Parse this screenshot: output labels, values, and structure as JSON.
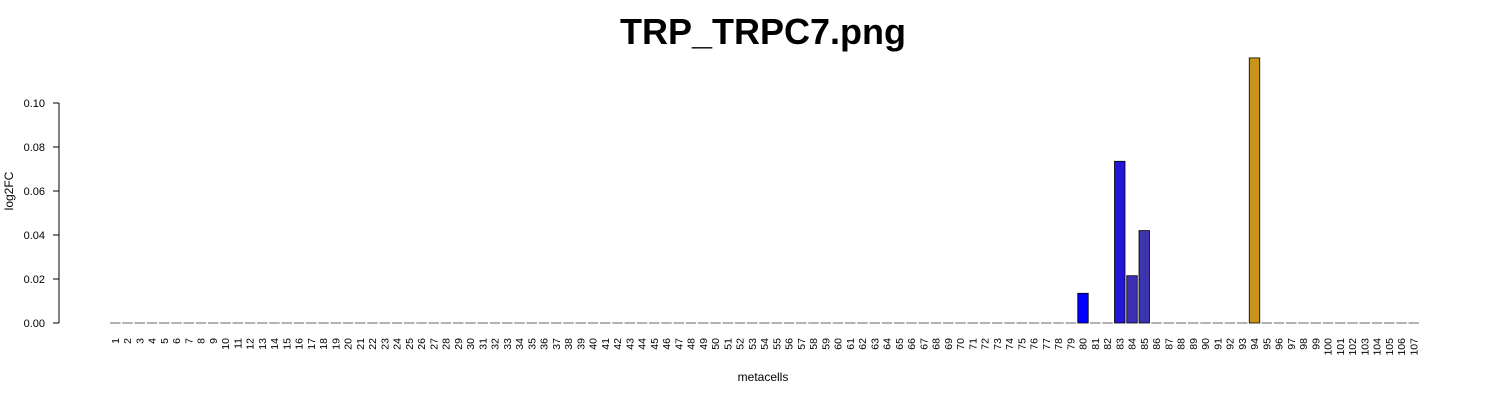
{
  "chart_data": {
    "type": "bar",
    "title": "TRP_TRPC7.png",
    "xlabel": "metacells",
    "ylabel": "log2FC",
    "ylim": [
      0,
      0.12
    ],
    "yticks": [
      "0.00",
      "0.02",
      "0.04",
      "0.06",
      "0.08",
      "0.10"
    ],
    "categories": [
      "1",
      "2",
      "3",
      "4",
      "5",
      "6",
      "7",
      "8",
      "9",
      "10",
      "11",
      "12",
      "13",
      "14",
      "15",
      "16",
      "17",
      "18",
      "19",
      "20",
      "21",
      "22",
      "23",
      "24",
      "25",
      "26",
      "27",
      "28",
      "29",
      "30",
      "31",
      "32",
      "33",
      "34",
      "35",
      "36",
      "37",
      "38",
      "39",
      "40",
      "41",
      "42",
      "43",
      "44",
      "45",
      "46",
      "47",
      "48",
      "49",
      "50",
      "51",
      "52",
      "53",
      "54",
      "55",
      "56",
      "57",
      "58",
      "59",
      "60",
      "61",
      "62",
      "63",
      "64",
      "65",
      "66",
      "67",
      "68",
      "69",
      "70",
      "71",
      "72",
      "73",
      "74",
      "75",
      "76",
      "77",
      "78",
      "79",
      "80",
      "81",
      "82",
      "83",
      "84",
      "85",
      "86",
      "87",
      "88",
      "89",
      "90",
      "91",
      "92",
      "93",
      "94",
      "95",
      "96",
      "97",
      "98",
      "99",
      "100",
      "101",
      "102",
      "103",
      "104",
      "105",
      "106",
      "107"
    ],
    "values": [
      0,
      0,
      0,
      0,
      0,
      0,
      0,
      0,
      0,
      0,
      0,
      0,
      0,
      0,
      0,
      0,
      0,
      0,
      0,
      0,
      0,
      0,
      0,
      0,
      0,
      0,
      0,
      0,
      0,
      0,
      0,
      0,
      0,
      0,
      0,
      0,
      0,
      0,
      0,
      0,
      0,
      0,
      0,
      0,
      0,
      0,
      0,
      0,
      0,
      0,
      0,
      0,
      0,
      0,
      0,
      0,
      0,
      0,
      0,
      0,
      0,
      0,
      0,
      0,
      0,
      0,
      0,
      0,
      0,
      0,
      0,
      0,
      0,
      0,
      0,
      0,
      0,
      0,
      0,
      0.0135,
      0,
      0,
      0.0735,
      0.0215,
      0.042,
      0,
      0,
      0,
      0,
      0,
      0,
      0,
      0,
      0.1205,
      0,
      0,
      0,
      0,
      0,
      0,
      0,
      0,
      0,
      0,
      0,
      0,
      0
    ],
    "colors": {
      "80": "#0000ff",
      "83": "#2416d8",
      "84": "#3a2fb5",
      "85": "#3d35b0",
      "94": "#c9941a",
      "default": "#808080"
    },
    "grid": false,
    "legend": "none"
  }
}
